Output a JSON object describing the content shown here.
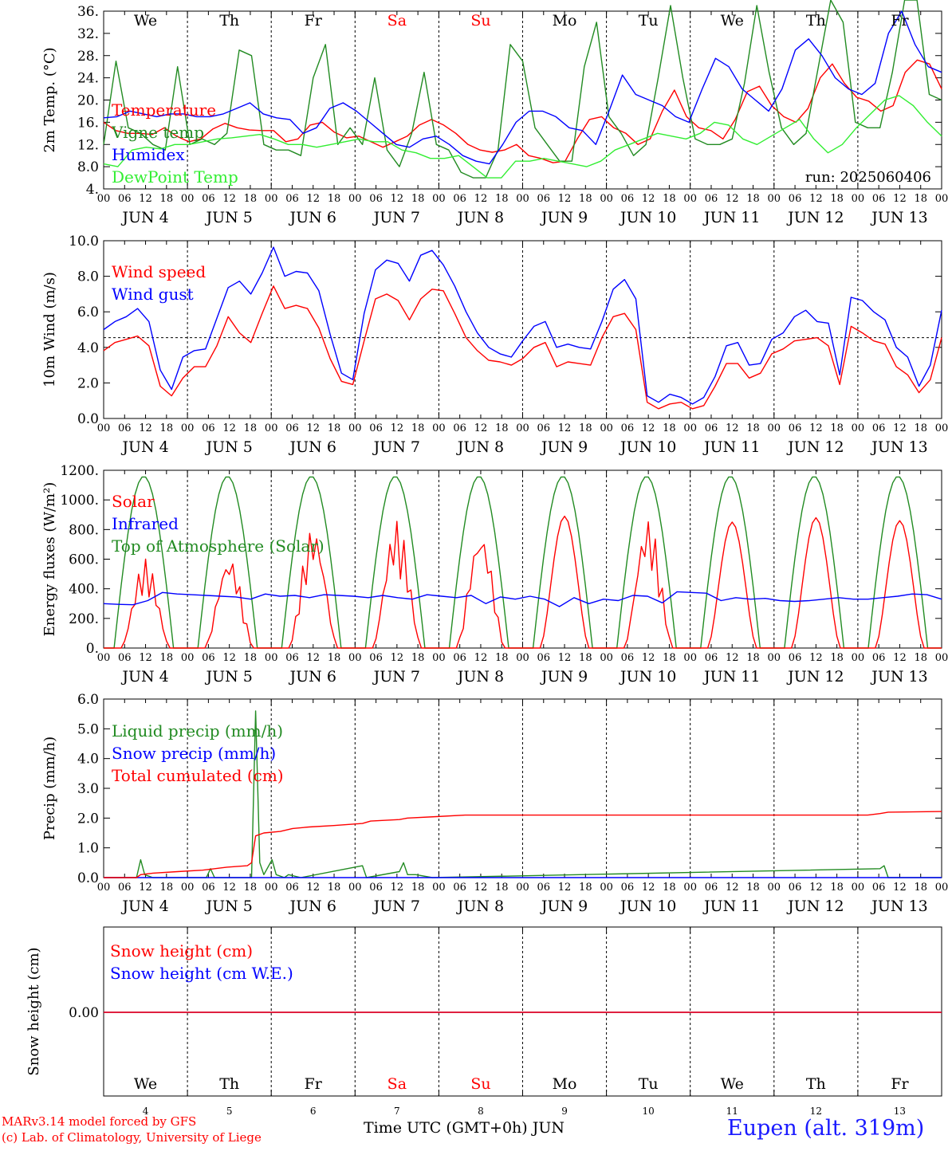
{
  "day_abbr": [
    "We",
    "Th",
    "Fr",
    "Sa",
    "Su",
    "Mo",
    "Tu",
    "We",
    "Th",
    "Fr"
  ],
  "day_abbr_colors": [
    "#000000",
    "#000000",
    "#000000",
    "#ff0000",
    "#ff0000",
    "#000000",
    "#000000",
    "#000000",
    "#000000",
    "#000000"
  ],
  "hour_ticks": [
    "00",
    "06",
    "12",
    "18"
  ],
  "date_labels": [
    "JUN  4",
    "JUN  5",
    "JUN  6",
    "JUN  7",
    "JUN  8",
    "JUN  9",
    "JUN 10",
    "JUN 11",
    "JUN 12",
    "JUN 13"
  ],
  "snow_day_numbers": [
    "4",
    "5",
    "6",
    "7",
    "8",
    "9",
    "10",
    "11",
    "12",
    "13"
  ],
  "footer": {
    "model": "MARv3.14 model forced by GFS",
    "copyright": "(c) Lab. of Climatology, University of Liege",
    "time_axis": "Time UTC (GMT+0h) JUN",
    "station": "Eupen (alt. 319m)"
  },
  "chart_data": [
    {
      "type": "line",
      "ylabel": "2m Temp. (°C)",
      "ylim": [
        4,
        36
      ],
      "y_ticks": [
        "4.",
        "8.0",
        "12.",
        "16.",
        "20.",
        "24.",
        "28.",
        "32.",
        "36."
      ],
      "x_unit": "hours since JUN 4 00 UTC (3-hourly)",
      "annotation": "run: 2025060406",
      "series": [
        {
          "name": "Temperature",
          "color": "#ff0000",
          "values": [
            16,
            14.5,
            14,
            14,
            13.8,
            15,
            13.5,
            12.5,
            13,
            14.8,
            15.8,
            15,
            14.6,
            14.5,
            14.5,
            12.5,
            13,
            15.5,
            16,
            14.2,
            13.2,
            13.5,
            12.5,
            11.5,
            12.5,
            13.5,
            15.5,
            16.5,
            15.5,
            14,
            12,
            11,
            10.6,
            11,
            12,
            10,
            9.5,
            8.7,
            9,
            13,
            16.5,
            17,
            15,
            14,
            12,
            13,
            18,
            21.8,
            17,
            15,
            14.5,
            13,
            16.5,
            21.5,
            22.5,
            19,
            17,
            16,
            18.5,
            24,
            26.5,
            23,
            20.5,
            19.8,
            18,
            19,
            25,
            27.2,
            26.5,
            22
          ]
        },
        {
          "name": "Vigne temp",
          "color": "#228b22",
          "values": [
            12,
            27,
            15,
            14,
            12,
            11,
            26,
            12,
            13,
            12,
            14,
            29,
            28,
            12,
            11,
            11,
            10,
            24,
            30,
            12,
            15,
            12,
            24,
            11,
            8,
            14,
            25,
            12,
            11,
            7,
            6,
            6,
            11,
            30,
            27,
            15,
            12,
            9,
            9,
            26,
            34,
            17,
            14,
            10,
            12,
            24,
            37,
            24,
            13,
            12,
            12,
            13,
            23,
            37,
            25,
            15,
            12,
            14,
            26,
            38,
            34,
            16,
            15,
            15,
            25,
            38,
            38,
            21,
            20
          ]
        },
        {
          "name": "Humidex",
          "color": "#0000ff",
          "values": [
            16.8,
            17,
            18,
            17.5,
            17,
            17.5,
            17.5,
            17,
            17,
            17.5,
            18.5,
            19.5,
            17.5,
            16.8,
            16.5,
            14,
            15,
            18.5,
            19.5,
            18,
            16,
            14,
            12,
            11.5,
            13,
            13.5,
            12,
            10,
            9,
            8.5,
            12,
            16,
            18,
            18,
            17,
            15,
            14.5,
            12,
            18,
            24.5,
            21,
            20,
            19,
            17,
            16,
            22,
            27.5,
            26,
            22,
            20,
            18,
            22,
            29,
            31,
            28,
            24,
            22,
            21,
            23,
            32,
            36,
            30,
            26,
            25
          ]
        },
        {
          "name": "DewPoint Temp",
          "color": "#32ee32",
          "values": [
            8.5,
            8,
            11,
            11.5,
            11.2,
            12,
            12,
            12.5,
            13,
            13.2,
            13.5,
            13.8,
            13,
            12,
            12,
            11.5,
            12,
            12.5,
            13,
            12.5,
            12.5,
            11,
            10.5,
            9.5,
            9.5,
            10,
            8,
            6,
            6,
            9,
            9,
            9.5,
            9,
            8.5,
            8,
            9,
            11,
            12,
            13,
            14,
            13.5,
            13,
            14,
            16,
            15.5,
            13,
            12,
            13.5,
            15,
            16.5,
            13,
            10.5,
            12,
            15,
            17.5,
            20,
            20.8,
            19,
            16,
            13.5
          ]
        }
      ]
    },
    {
      "type": "line",
      "ylabel": "10m Wind (m/s)",
      "ylim": [
        0,
        11
      ],
      "y_ticks": [
        "0.0",
        "2.0",
        "4.0",
        "6.0",
        "8.0",
        "10.0"
      ],
      "reference_line": 5,
      "series": [
        {
          "name": "Wind speed",
          "color": "#ff0000",
          "values": [
            4.2,
            4.7,
            4.9,
            5.1,
            4.5,
            2,
            1.4,
            2.5,
            3.2,
            3.2,
            4.5,
            6.3,
            5.3,
            4.7,
            6.5,
            8.2,
            6.8,
            7,
            6.8,
            5.6,
            3.7,
            2.3,
            2.1,
            4.8,
            7.4,
            7.7,
            7.3,
            6.1,
            7.4,
            8,
            7.9,
            6.5,
            5,
            4.2,
            3.6,
            3.5,
            3.3,
            3.7,
            4.4,
            4.7,
            3.2,
            3.5,
            3.4,
            3.3,
            5,
            6.3,
            6.5,
            5.5,
            1,
            0.6,
            0.9,
            1,
            0.6,
            0.8,
            2,
            3.4,
            3.4,
            2.5,
            2.8,
            4,
            4.3,
            4.8,
            4.9,
            5,
            4.5,
            2.1,
            5.7,
            5.3,
            4.8,
            4.6,
            3.2,
            2.7,
            1.6,
            2.4,
            5
          ]
        },
        {
          "name": "Wind gust",
          "color": "#0000ff",
          "values": [
            5.5,
            6,
            6.3,
            6.8,
            6,
            3,
            1.8,
            3.8,
            4.2,
            4.3,
            6.2,
            8.1,
            8.5,
            7.7,
            9,
            10.6,
            8.8,
            9.1,
            9,
            7.9,
            5.2,
            2.8,
            2.4,
            6.5,
            9.2,
            9.8,
            9.6,
            8.5,
            10.1,
            10.4,
            9.5,
            8.2,
            6.6,
            5.3,
            4.4,
            4,
            3.8,
            4.8,
            5.7,
            6,
            4.4,
            4.6,
            4.4,
            4.3,
            6,
            8,
            8.6,
            7.4,
            1.4,
            1,
            1.5,
            1.3,
            0.9,
            1.3,
            2.6,
            4.5,
            4.7,
            3.3,
            3.4,
            4.9,
            5.3,
            6.3,
            6.7,
            6,
            5.9,
            2.7,
            7.5,
            7.3,
            6.6,
            6.1,
            4.4,
            3.8,
            2,
            3.3,
            6.7
          ]
        }
      ]
    },
    {
      "type": "line",
      "ylabel": "Energy fluxes (W/m²)",
      "ylim": [
        0,
        1200
      ],
      "y_ticks": [
        "0.",
        "200.",
        "400.",
        "600.",
        "800.",
        "1000.",
        "1200."
      ],
      "series": [
        {
          "name": "Solar",
          "color": "#ff0000",
          "day_peaks": [
            600,
            620,
            820,
            860,
            790,
            890,
            870,
            850,
            880,
            860
          ]
        },
        {
          "name": "Infrared",
          "color": "#0000ff",
          "values": [
            300,
            295,
            292,
            320,
            375,
            365,
            360,
            355,
            350,
            345,
            330,
            365,
            350,
            355,
            340,
            360,
            355,
            350,
            340,
            355,
            340,
            330,
            360,
            350,
            340,
            355,
            300,
            345,
            330,
            350,
            330,
            280,
            340,
            300,
            330,
            320,
            355,
            350,
            305,
            380,
            375,
            370,
            320,
            340,
            330,
            335,
            320,
            315,
            320,
            330,
            340,
            330,
            330,
            340,
            350,
            365,
            360,
            330
          ]
        },
        {
          "name": "Top of Atmosphere (Solar)",
          "color": "#228b22",
          "day_peak": 1160
        }
      ]
    },
    {
      "type": "line",
      "ylabel": "Precip (mm/h)",
      "ylim": [
        0,
        6
      ],
      "y_ticks": [
        "0.0",
        "1.0",
        "2.0",
        "3.0",
        "4.0",
        "5.0",
        "6.0"
      ],
      "series": [
        {
          "name": "Liquid precip (mm/h)",
          "color": "#228b22",
          "points": [
            [
              0,
              0
            ],
            [
              48,
              0
            ],
            [
              54,
              0.6
            ],
            [
              60,
              0.1
            ],
            [
              72,
              0
            ],
            [
              150,
              0
            ],
            [
              156,
              0.3
            ],
            [
              162,
              0
            ],
            [
              216,
              0
            ],
            [
              222,
              5.6
            ],
            [
              228,
              0.5
            ],
            [
              234,
              0.1
            ],
            [
              246,
              0.6
            ],
            [
              252,
              0.1
            ],
            [
              264,
              0
            ],
            [
              270,
              0.1
            ],
            [
              288,
              0
            ],
            [
              378,
              0.4
            ],
            [
              384,
              0
            ],
            [
              432,
              0.2
            ],
            [
              438,
              0.5
            ],
            [
              444,
              0.1
            ],
            [
              456,
              0.1
            ],
            [
              480,
              0
            ],
            [
              1134,
              0.3
            ],
            [
              1140,
              0.4
            ],
            [
              1146,
              0
            ],
            [
              1224,
              0
            ]
          ]
        },
        {
          "name": "Snow precip (mm/h)",
          "color": "#0000ff",
          "points": [
            [
              0,
              0
            ],
            [
              1224,
              0
            ]
          ]
        },
        {
          "name": "Total cumulated (cm)",
          "color": "#ff0000",
          "points": [
            [
              0,
              0
            ],
            [
              48,
              0
            ],
            [
              54,
              0.1
            ],
            [
              72,
              0.15
            ],
            [
              108,
              0.2
            ],
            [
              144,
              0.25
            ],
            [
              180,
              0.35
            ],
            [
              210,
              0.4
            ],
            [
              216,
              0.5
            ],
            [
              222,
              1.4
            ],
            [
              234,
              1.5
            ],
            [
              258,
              1.55
            ],
            [
              276,
              1.65
            ],
            [
              300,
              1.7
            ],
            [
              336,
              1.75
            ],
            [
              378,
              1.82
            ],
            [
              390,
              1.9
            ],
            [
              432,
              1.95
            ],
            [
              444,
              2.0
            ],
            [
              486,
              2.05
            ],
            [
              528,
              2.1
            ],
            [
              1000,
              2.1
            ],
            [
              1116,
              2.1
            ],
            [
              1134,
              2.15
            ],
            [
              1146,
              2.2
            ],
            [
              1224,
              2.22
            ]
          ]
        }
      ]
    },
    {
      "type": "line",
      "ylabel": "Snow height (cm)",
      "y_ticks": [
        "0.00"
      ],
      "series": [
        {
          "name": "Snow height (cm)",
          "color": "#ff0000",
          "points": [
            [
              0,
              0
            ],
            [
              1224,
              0
            ]
          ]
        },
        {
          "name": "Snow height (cm W.E.)",
          "color": "#0000ff",
          "points": [
            [
              0,
              0
            ],
            [
              1224,
              0
            ]
          ]
        }
      ]
    }
  ]
}
